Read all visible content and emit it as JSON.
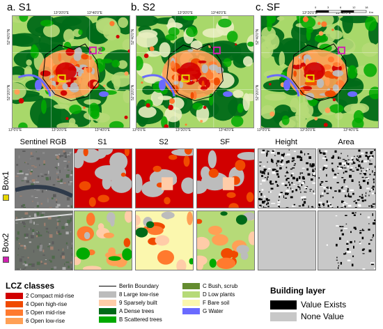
{
  "maps": [
    {
      "id": "s1",
      "title": "a. S1",
      "top_ticks": [
        "13°20'0\"E",
        "13°40'0\"E"
      ],
      "bottom_ticks": [
        "13°0'0\"E",
        "13°20'0\"E",
        "13°40'0\"E"
      ],
      "left_ticks": [
        "52°40'0\"N",
        "52°20'0\"N"
      ],
      "marker2": "2"
    },
    {
      "id": "s2",
      "title": "b. S2",
      "top_ticks": [
        "13°20'0\"E",
        "13°40'0\"E"
      ],
      "bottom_ticks": [
        "13°0'0\"E",
        "13°20'0\"E",
        "13°40'0\"E"
      ],
      "left_ticks": [
        "52°40'0\"N",
        "52°20'0\"N"
      ]
    },
    {
      "id": "sf",
      "title": "c. SF",
      "top_ticks": [
        "13°20'0\"E",
        "13°40'0\"E"
      ],
      "bottom_ticks": [
        "13°0'0\"E",
        "13°20'0\"E",
        "13°40'0\"E"
      ],
      "left_ticks": [
        "52°40'0\"N",
        "52°20'0\"N"
      ]
    }
  ],
  "scale_bar": {
    "labels": [
      "0",
      "3",
      "6",
      "12",
      "18"
    ],
    "unit": "Km"
  },
  "columns": [
    "Sentinel RGB",
    "S1",
    "S2",
    "SF",
    "Height",
    "Area"
  ],
  "rows": [
    {
      "label": "Box1",
      "marker_color": "#e8d800"
    },
    {
      "label": "Box2",
      "marker_color": "#d020b0"
    }
  ],
  "lcz_legend": {
    "title": "LCZ classes",
    "items": [
      {
        "label": "2 Compact mid-rise",
        "color": "#d10000"
      },
      {
        "label": "4 Open high-rise",
        "color": "#f04a00"
      },
      {
        "label": "5 Open mid-rise",
        "color": "#ff7a2e"
      },
      {
        "label": "6 Open low-rise",
        "color": "#ffa055"
      },
      {
        "label": "Berlin Boundary",
        "color": "#000000"
      },
      {
        "label": "8 Large low-rise",
        "color": "#bcbcbc"
      },
      {
        "label": "9 Sparsely built",
        "color": "#ffcca8"
      },
      {
        "label": "A Dense trees",
        "color": "#006a18"
      },
      {
        "label": "B Scattered trees",
        "color": "#00aa00"
      },
      {
        "label": "C Bush, scrub",
        "color": "#648c30"
      },
      {
        "label": "D Low plants",
        "color": "#b6da78"
      },
      {
        "label": "F Bare soil",
        "color": "#fbf7ae"
      },
      {
        "label": "G Water",
        "color": "#6a6aff"
      }
    ]
  },
  "building_legend": {
    "title": "Building layer",
    "items": [
      {
        "label": "Value Exists",
        "color": "#000000"
      },
      {
        "label": "None Value",
        "color": "#c8c8c8"
      }
    ]
  }
}
